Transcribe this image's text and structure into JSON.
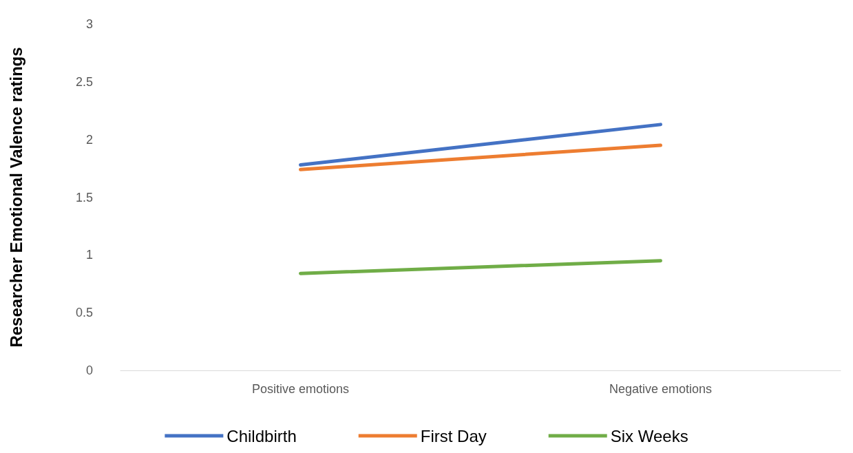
{
  "chart_data": {
    "type": "line",
    "ylabel": "Researcher Emotional Valence ratings",
    "categories": [
      "Positive emotions",
      "Negative emotions"
    ],
    "series": [
      {
        "name": "Childbirth",
        "color": "#4472c4",
        "values": [
          1.78,
          2.13
        ]
      },
      {
        "name": "First Day",
        "color": "#ed7d31",
        "values": [
          1.74,
          1.95
        ]
      },
      {
        "name": "Six Weeks",
        "color": "#70ad47",
        "values": [
          0.84,
          0.95
        ]
      }
    ],
    "ylim": [
      0,
      3
    ],
    "yticks": [
      0,
      0.5,
      1,
      1.5,
      2,
      2.5,
      3
    ],
    "grid": false,
    "legend": "bottom",
    "marker": "none",
    "line_style": "solid"
  }
}
